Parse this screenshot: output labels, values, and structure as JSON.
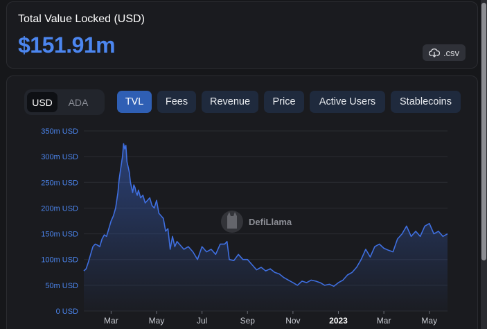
{
  "summary": {
    "label": "Total Value Locked (USD)",
    "value": "$151.91m",
    "csv_label": ".csv",
    "csv_icon": "cloud-download-icon"
  },
  "currency_toggle": {
    "options": [
      "USD",
      "ADA"
    ],
    "selected": "USD"
  },
  "tabs": [
    {
      "label": "TVL",
      "active": true
    },
    {
      "label": "Fees",
      "active": false
    },
    {
      "label": "Revenue",
      "active": false
    },
    {
      "label": "Price",
      "active": false
    },
    {
      "label": "Active Users",
      "active": false
    },
    {
      "label": "Stablecoins",
      "active": false
    }
  ],
  "watermark": "DefiLlama",
  "colors": {
    "accent": "#4c86ef",
    "line": "#3f6fe0",
    "active_tab": "#2f5fb4",
    "tab": "#1f2a3d"
  },
  "chart_data": {
    "type": "area",
    "title": "",
    "xlabel": "",
    "ylabel": "",
    "ylim": [
      0,
      350
    ],
    "y_unit": "m USD",
    "y_ticks": [
      "0 USD",
      "50m USD",
      "100m USD",
      "150m USD",
      "200m USD",
      "250m USD",
      "300m USD",
      "350m USD"
    ],
    "y_tick_values": [
      0,
      50,
      100,
      150,
      200,
      250,
      300,
      350
    ],
    "x_ticks": [
      {
        "label": "Mar",
        "month": 2,
        "bold": false
      },
      {
        "label": "May",
        "month": 4,
        "bold": false
      },
      {
        "label": "Jul",
        "month": 6,
        "bold": false
      },
      {
        "label": "Sep",
        "month": 8,
        "bold": false
      },
      {
        "label": "Nov",
        "month": 10,
        "bold": false
      },
      {
        "label": "2023",
        "month": 12,
        "bold": true
      },
      {
        "label": "Mar",
        "month": 14,
        "bold": false
      },
      {
        "label": "May",
        "month": 16,
        "bold": false
      }
    ],
    "x_range_months": [
      0.8,
      16.8
    ],
    "grid": true,
    "legend": "none",
    "series": [
      {
        "x_months": [
          0.8,
          0.9,
          1.0,
          1.1,
          1.2,
          1.3,
          1.4,
          1.5,
          1.6,
          1.7,
          1.8,
          1.9,
          2.0,
          2.1,
          2.2,
          2.3,
          2.35,
          2.4,
          2.5,
          2.55,
          2.6,
          2.65,
          2.7,
          2.75,
          2.8,
          2.85,
          2.9,
          2.95,
          3.0,
          3.05,
          3.1,
          3.15,
          3.2,
          3.3,
          3.4,
          3.5,
          3.6,
          3.7,
          3.8,
          3.9,
          4.0,
          4.1,
          4.2,
          4.3,
          4.4,
          4.5,
          4.6,
          4.7,
          4.8,
          4.9,
          5.0,
          5.2,
          5.4,
          5.6,
          5.8,
          6.0,
          6.2,
          6.4,
          6.6,
          6.8,
          7.0,
          7.1,
          7.2,
          7.4,
          7.6,
          7.8,
          8.0,
          8.2,
          8.4,
          8.6,
          8.8,
          9.0,
          9.2,
          9.4,
          9.6,
          9.8,
          10.0,
          10.2,
          10.4,
          10.6,
          10.8,
          11.0,
          11.2,
          11.4,
          11.6,
          11.8,
          12.0,
          12.2,
          12.4,
          12.6,
          12.8,
          13.0,
          13.2,
          13.4,
          13.6,
          13.8,
          14.0,
          14.2,
          14.4,
          14.6,
          14.8,
          15.0,
          15.2,
          15.4,
          15.6,
          15.8,
          16.0,
          16.2,
          16.4,
          16.6,
          16.8
        ],
        "values": [
          78,
          82,
          95,
          110,
          125,
          130,
          128,
          125,
          140,
          148,
          145,
          160,
          175,
          185,
          200,
          230,
          255,
          270,
          300,
          325,
          315,
          322,
          290,
          280,
          270,
          250,
          240,
          230,
          245,
          240,
          230,
          225,
          235,
          220,
          225,
          210,
          215,
          220,
          205,
          200,
          215,
          190,
          185,
          180,
          155,
          160,
          120,
          145,
          125,
          135,
          130,
          120,
          125,
          115,
          100,
          125,
          115,
          120,
          110,
          130,
          130,
          135,
          100,
          98,
          110,
          100,
          100,
          90,
          80,
          85,
          78,
          82,
          75,
          72,
          65,
          60,
          55,
          50,
          58,
          55,
          60,
          58,
          55,
          50,
          52,
          48,
          55,
          60,
          70,
          75,
          85,
          100,
          120,
          105,
          125,
          130,
          122,
          118,
          115,
          140,
          150,
          165,
          145,
          155,
          145,
          165,
          170,
          150,
          155,
          145,
          150
        ],
        "color": "#3f6fe0"
      }
    ]
  }
}
